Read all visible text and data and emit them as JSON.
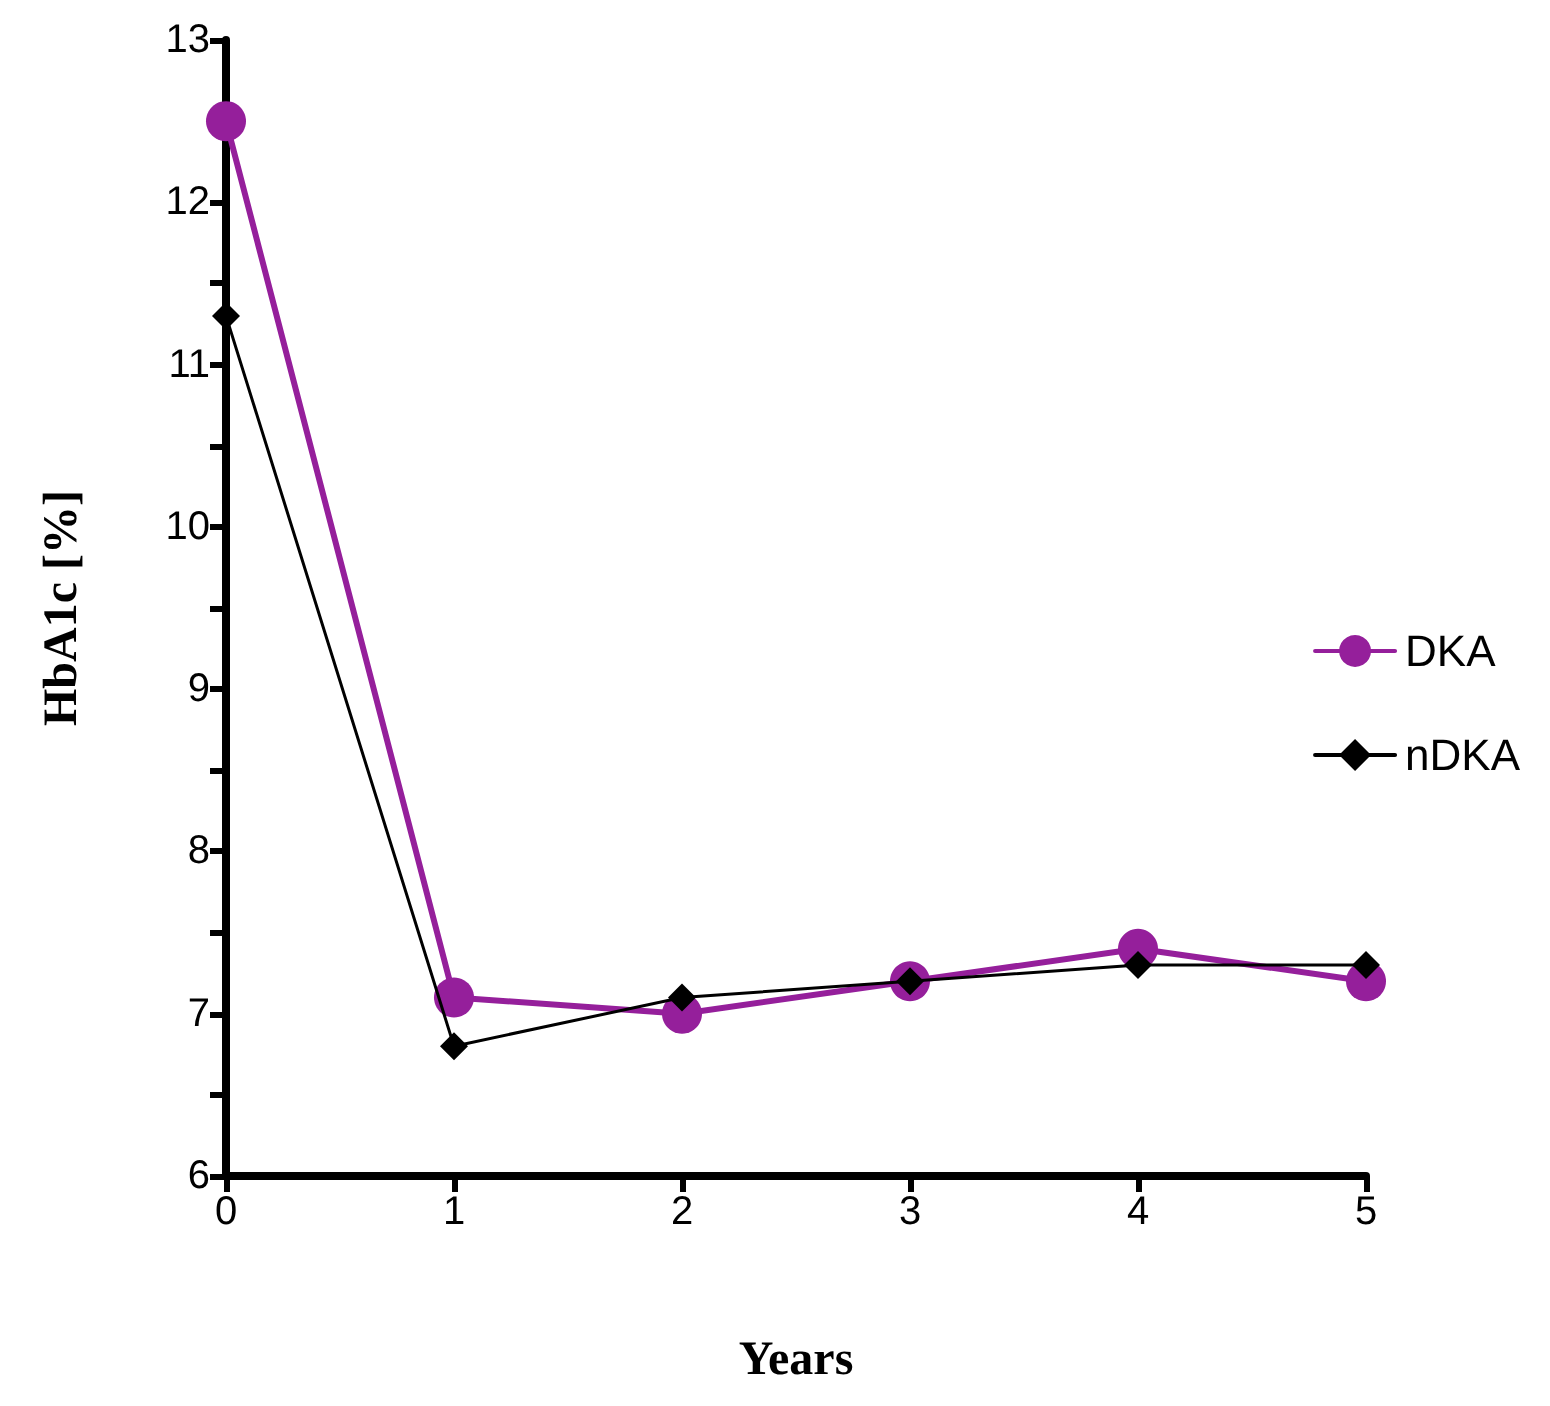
{
  "chart_data": {
    "type": "line",
    "xlabel": "Years",
    "ylabel": "HbA1c [%]",
    "x": [
      0,
      1,
      2,
      3,
      4,
      5
    ],
    "series": [
      {
        "name": "DKA",
        "color": "#951f9b",
        "marker": "circle",
        "values": [
          12.5,
          7.1,
          7.0,
          7.2,
          7.4,
          7.2
        ]
      },
      {
        "name": "nDKA",
        "color": "#000000",
        "marker": "diamond",
        "values": [
          11.3,
          6.8,
          7.1,
          7.2,
          7.3,
          7.3
        ]
      }
    ],
    "xlim": [
      0,
      5
    ],
    "xticks": [
      0,
      1,
      2,
      3,
      4,
      5
    ],
    "ylim": [
      6,
      13
    ],
    "yticks": [
      6,
      {
        "value": 6.5,
        "label": null
      },
      7,
      {
        "value": 7.5,
        "label": null
      },
      8,
      {
        "value": 8.5,
        "label": null
      },
      9,
      {
        "value": 9.5,
        "label": null
      },
      10,
      {
        "value": 10.5,
        "label": null
      },
      11,
      {
        "value": 11.5,
        "label": null
      },
      12,
      {
        "value": 12.5,
        "label": null
      },
      13
    ],
    "grid": false,
    "legend": "right"
  }
}
